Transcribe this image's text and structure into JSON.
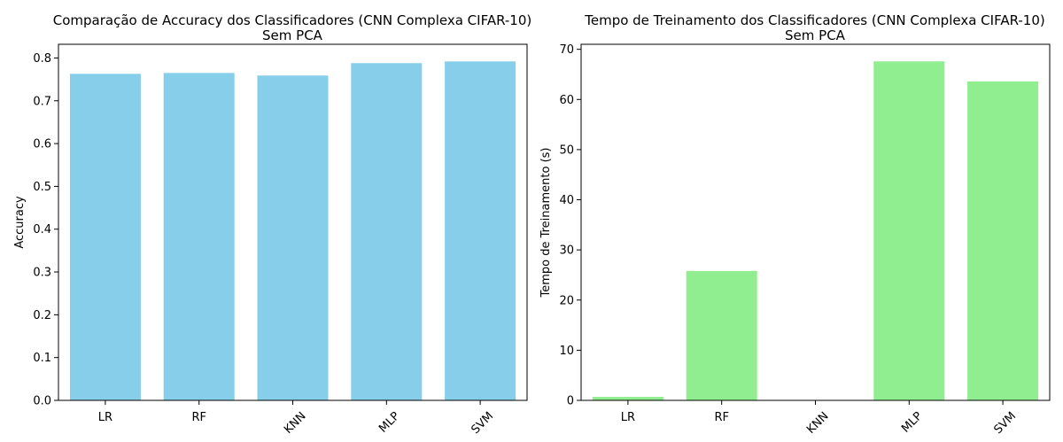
{
  "chart_data": [
    {
      "type": "bar",
      "title": "Comparação de Accuracy dos Classificadores (CNN Complexa CIFAR-10)",
      "subtitle": "Sem PCA",
      "xlabel": "",
      "ylabel": "Accuracy",
      "categories": [
        "LR",
        "RF",
        "KNN",
        "MLP",
        "SVM"
      ],
      "values": [
        0.763,
        0.765,
        0.759,
        0.788,
        0.792
      ],
      "ylim": [
        0,
        0.832
      ],
      "yticks": [
        "0.0",
        "0.1",
        "0.2",
        "0.3",
        "0.4",
        "0.5",
        "0.6",
        "0.7",
        "0.8"
      ],
      "color": "#87ceeb",
      "grid": false
    },
    {
      "type": "bar",
      "title": "Tempo de Treinamento dos Classificadores (CNN Complexa CIFAR-10)",
      "subtitle": "Sem PCA",
      "xlabel": "",
      "ylabel": "Tempo de Treinamento (s)",
      "categories": [
        "LR",
        "RF",
        "KNN",
        "MLP",
        "SVM"
      ],
      "values": [
        0.7,
        25.8,
        0.0,
        67.6,
        63.6
      ],
      "ylim": [
        0,
        71
      ],
      "yticks": [
        "0",
        "10",
        "20",
        "30",
        "40",
        "50",
        "60",
        "70"
      ],
      "color": "#90ee90",
      "grid": false
    }
  ]
}
